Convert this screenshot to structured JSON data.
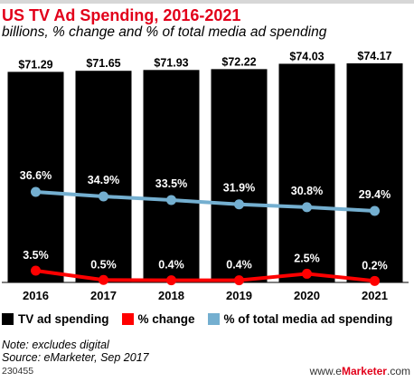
{
  "header": {
    "title": "US TV Ad Spending, 2016-2021",
    "subtitle": "billions, % change and % of total media ad spending"
  },
  "legend": [
    {
      "label": "TV ad spending",
      "color": "#000000"
    },
    {
      "label": "% change",
      "color": "#ff0000"
    },
    {
      "label": "% of total media ad spending",
      "color": "#74afd0"
    }
  ],
  "notes": {
    "line1": "Note: excludes digital",
    "line2": "Source: eMarketer, Sep 2017"
  },
  "footer": {
    "id": "230455",
    "brand_prefix": "www.e",
    "brand_mark": "Marketer",
    "brand_suffix": ".com"
  },
  "chart_data": {
    "type": "bar",
    "title": "US TV Ad Spending, 2016-2021",
    "subtitle": "billions, % change and % of total media ad spending",
    "categories": [
      "2016",
      "2017",
      "2018",
      "2019",
      "2020",
      "2021"
    ],
    "series": [
      {
        "name": "TV ad spending",
        "type": "bar",
        "color": "#000000",
        "values": [
          71.29,
          71.65,
          71.93,
          72.22,
          74.03,
          74.17
        ],
        "labels": [
          "$71.29",
          "$71.65",
          "$71.93",
          "$72.22",
          "$74.03",
          "$74.17"
        ]
      },
      {
        "name": "% change",
        "type": "line",
        "color": "#ff0000",
        "values": [
          3.5,
          0.5,
          0.4,
          0.4,
          2.5,
          0.2
        ],
        "labels": [
          "3.5%",
          "0.5%",
          "0.4%",
          "0.4%",
          "2.5%",
          "0.2%"
        ]
      },
      {
        "name": "% of total media ad spending",
        "type": "line",
        "color": "#74afd0",
        "values": [
          36.6,
          34.9,
          33.5,
          31.9,
          30.8,
          29.4
        ],
        "labels": [
          "36.6%",
          "34.9%",
          "33.5%",
          "31.9%",
          "30.8%",
          "29.4%"
        ]
      }
    ],
    "grid": false,
    "legend_position": "bottom"
  }
}
